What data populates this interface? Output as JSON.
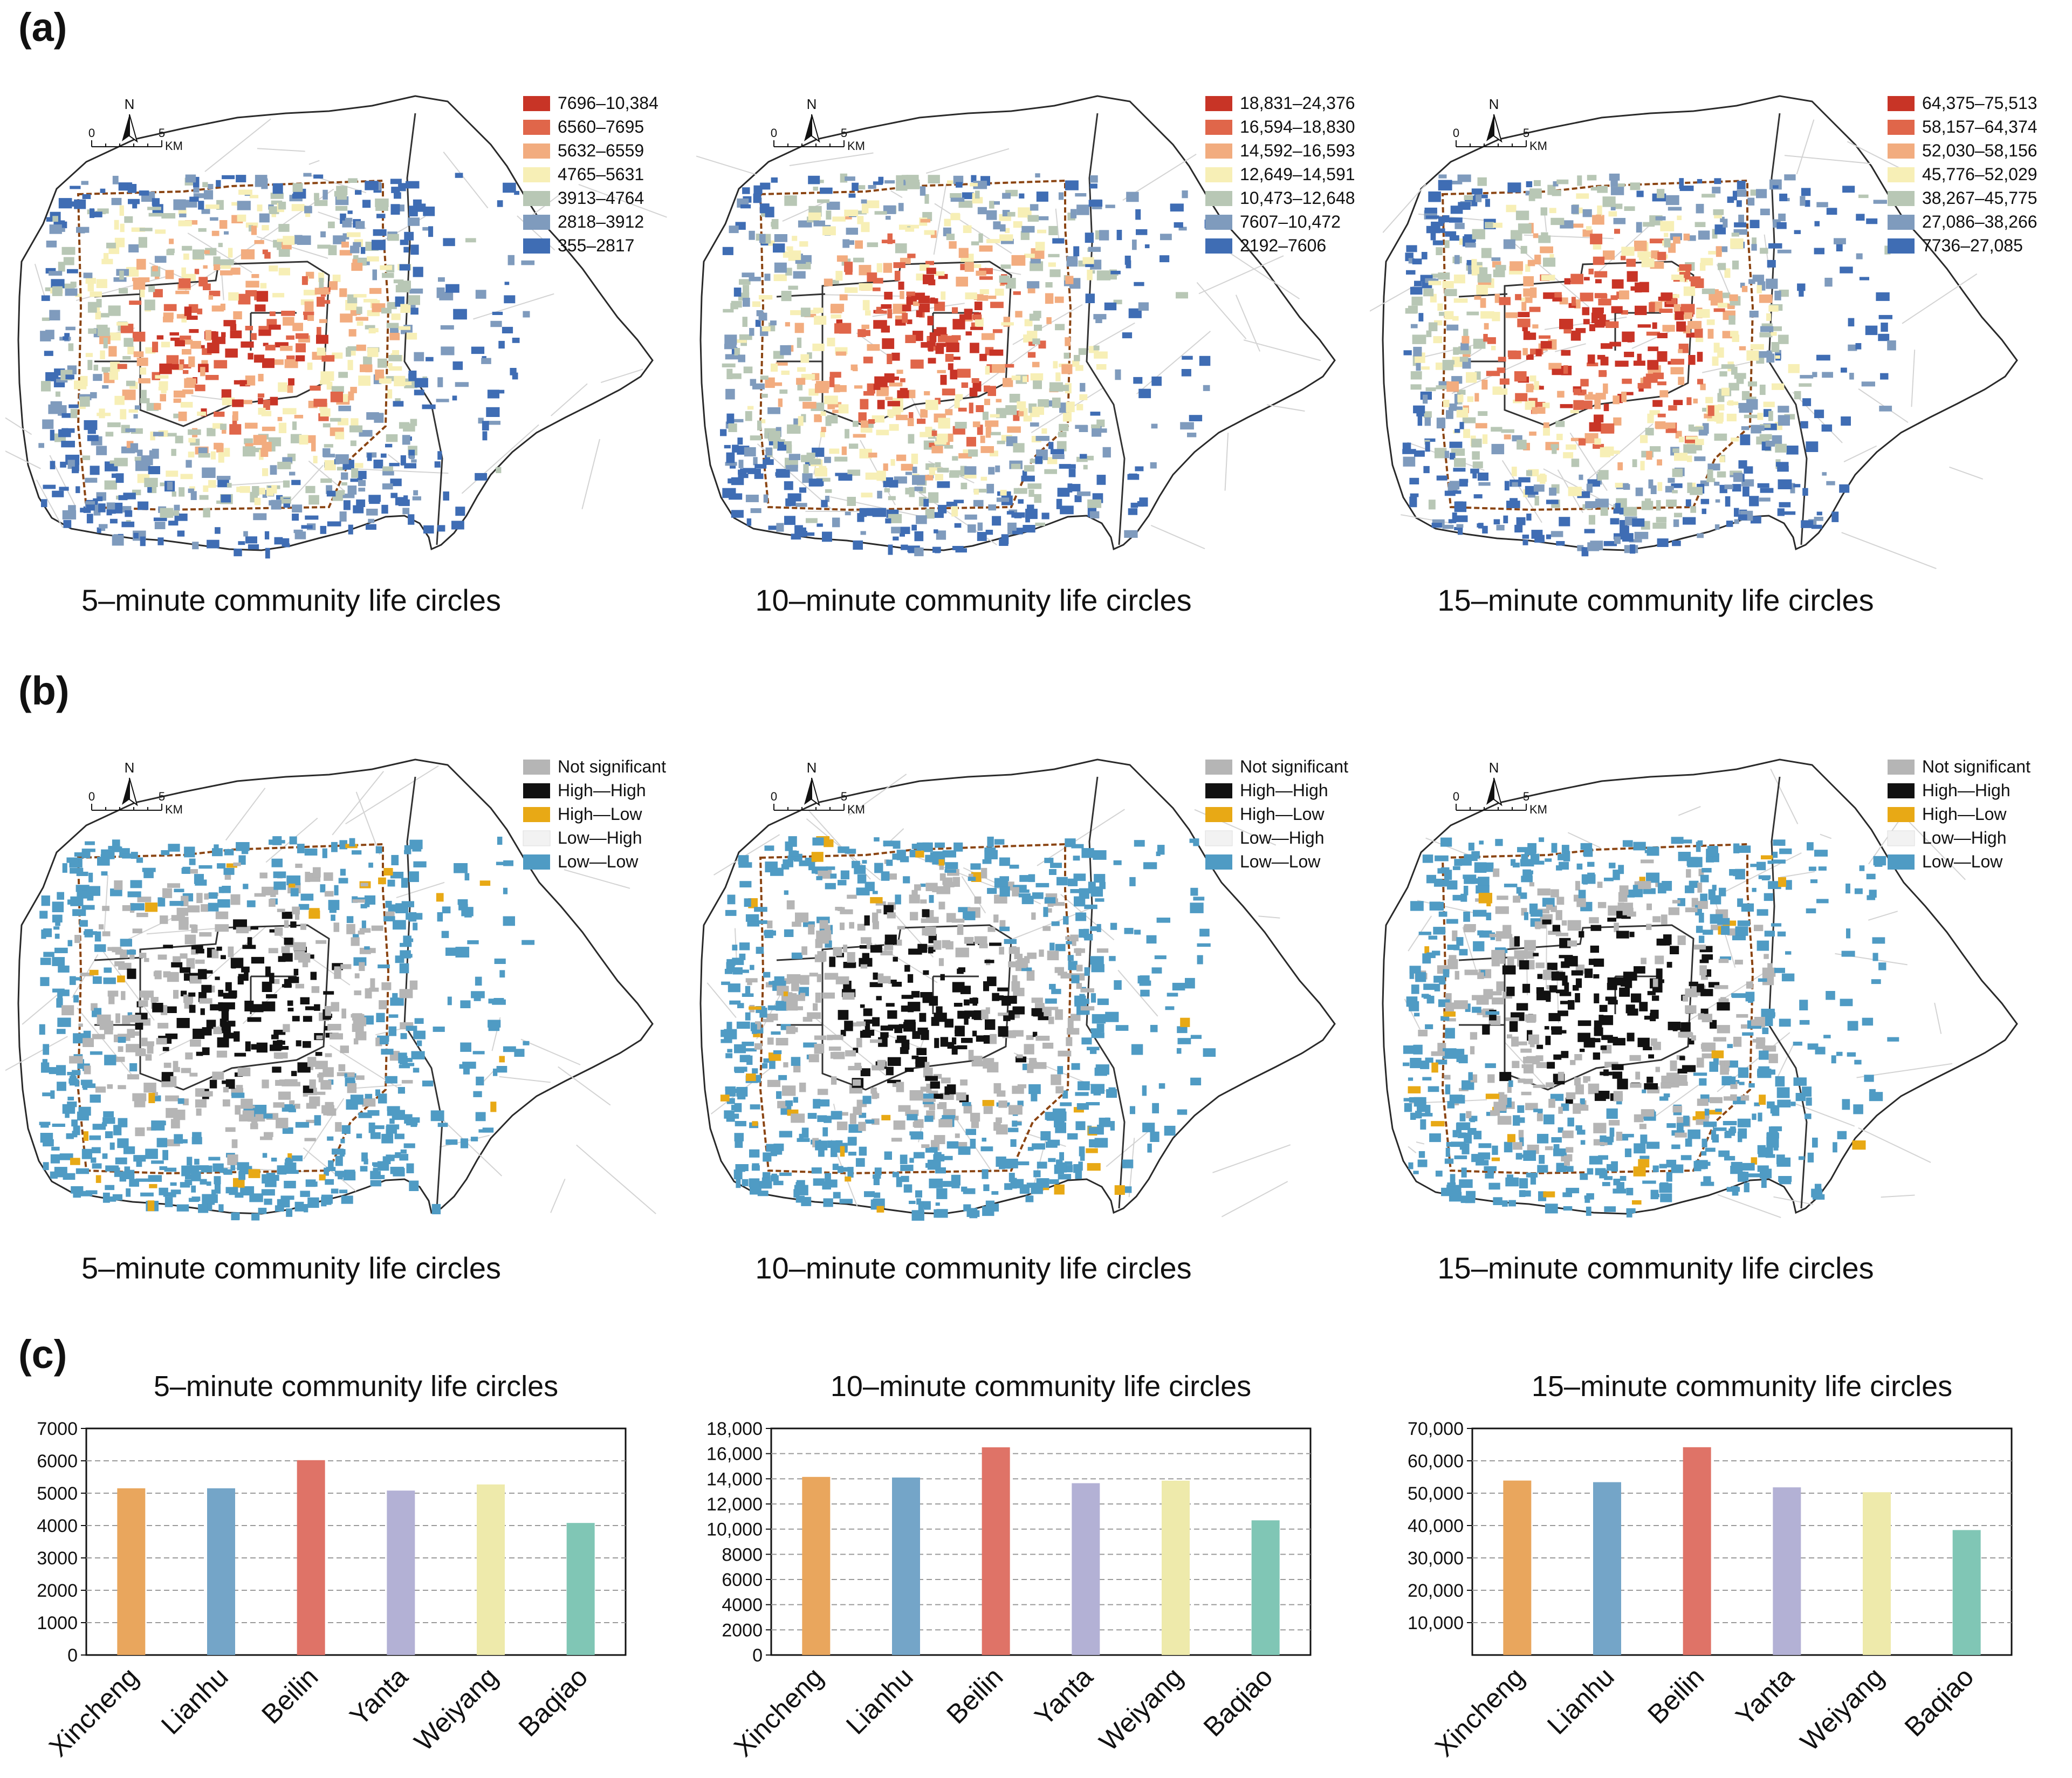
{
  "panel_labels": [
    "(a)",
    "(b)",
    "(c)"
  ],
  "maps_a": [
    {
      "caption": "5–minute community life circles",
      "legend": [
        "7696–10,384",
        "6560–7695",
        "5632–6559",
        "4765–5631",
        "3913–4764",
        "2818–3912",
        "355–2817"
      ],
      "emphasis": 0.45
    },
    {
      "caption": "10–minute community life circles",
      "legend": [
        "18,831–24,376",
        "16,594–18,830",
        "14,592–16,593",
        "12,649–14,591",
        "10,473–12,648",
        "7607–10,472",
        "2192–7606"
      ],
      "emphasis": 0.55
    },
    {
      "caption": "15–minute community life circles",
      "legend": [
        "64,375–75,513",
        "58,157–64,374",
        "52,030–58,156",
        "45,776–52,029",
        "38,267–45,775",
        "27,086–38,266",
        "7736–27,085"
      ],
      "emphasis": 0.7
    }
  ],
  "legend_a_colors": [
    "#c83426",
    "#e0664a",
    "#f2ac7f",
    "#f7efb6",
    "#b8c7b5",
    "#7f9bbd",
    "#3f6db4"
  ],
  "maps_b": [
    {
      "caption": "5–minute community life circles",
      "emphasis": 0.45
    },
    {
      "caption": "10–minute community life circles",
      "emphasis": 0.55
    },
    {
      "caption": "15–minute community life circles",
      "emphasis": 0.7
    }
  ],
  "legend_b": [
    "Not significant",
    "High—High",
    "High—Low",
    "Low—High",
    "Low—Low"
  ],
  "legend_b_colors": [
    "#b5b5b5",
    "#111111",
    "#e8a915",
    "#f2f2f2",
    "#4f9bc4"
  ],
  "compass": {
    "north": "N",
    "scale": [
      "0",
      "5"
    ],
    "unit": "KM"
  },
  "chart_data": [
    {
      "type": "bar",
      "title": "5–minute community life circles",
      "categories": [
        "Xincheng",
        "Lianhu",
        "Beilin",
        "Yanta",
        "Weiyang",
        "Baqiao"
      ],
      "values": [
        5150,
        5150,
        6020,
        5080,
        5270,
        4080
      ],
      "ylim": [
        0,
        7000
      ],
      "yticks": [
        0,
        1000,
        2000,
        3000,
        4000,
        5000,
        6000,
        7000
      ],
      "ytick_labels": [
        "0",
        "1000",
        "2000",
        "3000",
        "4000",
        "5000",
        "6000",
        "7000"
      ],
      "grid": true
    },
    {
      "type": "bar",
      "title": "10–minute community life circles",
      "categories": [
        "Xincheng",
        "Lianhu",
        "Beilin",
        "Yanta",
        "Weiyang",
        "Baqiao"
      ],
      "values": [
        14150,
        14100,
        16500,
        13650,
        13850,
        10700
      ],
      "ylim": [
        0,
        18000
      ],
      "yticks": [
        0,
        2000,
        4000,
        6000,
        8000,
        10000,
        12000,
        14000,
        16000,
        18000
      ],
      "ytick_labels": [
        "0",
        "2000",
        "4000",
        "6000",
        "8000",
        "10,000",
        "12,000",
        "14,000",
        "16,000",
        "18,000"
      ],
      "grid": true
    },
    {
      "type": "bar",
      "title": "15–minute community life circles",
      "categories": [
        "Xincheng",
        "Lianhu",
        "Beilin",
        "Yanta",
        "Weiyang",
        "Baqiao"
      ],
      "values": [
        53900,
        53400,
        64200,
        51800,
        50300,
        38600
      ],
      "ylim": [
        0,
        70000
      ],
      "yticks": [
        10000,
        20000,
        30000,
        40000,
        50000,
        60000,
        70000
      ],
      "ytick_labels": [
        "10,000",
        "20,000",
        "30,000",
        "40,000",
        "50,000",
        "60,000",
        "70,000"
      ],
      "grid": true
    }
  ],
  "bar_colors": [
    "#e9a65d",
    "#74a5c8",
    "#df7367",
    "#b3b1d5",
    "#eeeaab",
    "#80c6b5"
  ]
}
